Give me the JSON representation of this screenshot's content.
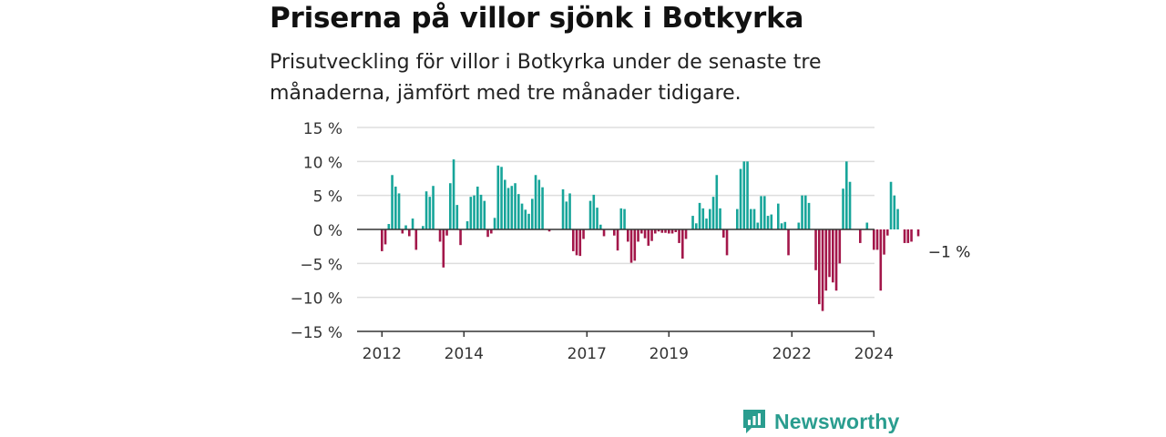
{
  "title": "Priserna på villor sjönk i Botkyrka",
  "subtitle": "Prisutveckling för villor i Botkyrka under de senaste tre månaderna, jämfört med tre månader tidigare.",
  "brand": {
    "name": "Newsworthy",
    "icon": "newsworthy-logo-icon"
  },
  "colors": {
    "positive": "#17a59a",
    "negative": "#a3174a",
    "grid": "#dddddd",
    "axis": "#333333"
  },
  "chart_data": {
    "type": "bar",
    "title": "Priserna på villor sjönk i Botkyrka",
    "xlabel": "",
    "ylabel": "",
    "ylim": [
      -15,
      15
    ],
    "y_ticks": [
      15,
      10,
      5,
      0,
      -5,
      -10,
      -15
    ],
    "y_tick_labels": [
      "15 %",
      "10 %",
      "5 %",
      "0 %",
      "−5 %",
      "−10 %",
      "−15 %"
    ],
    "x_ticks": [
      "2012",
      "2014",
      "2017",
      "2019",
      "2022",
      "2024"
    ],
    "grid": true,
    "last_value_label": "−1 %",
    "start_period": "2012-01",
    "values": [
      -3.2,
      -2.2,
      0.8,
      8,
      6.3,
      5.3,
      -0.6,
      0.6,
      -1,
      1.6,
      -3,
      0,
      0.5,
      5.6,
      4.8,
      6.4,
      0,
      -1.8,
      -5.6,
      -0.9,
      6.8,
      10.3,
      3.6,
      -2.3,
      0,
      1.2,
      4.8,
      5,
      6.3,
      5.1,
      4.2,
      -1.1,
      -0.6,
      1.7,
      9.4,
      9.2,
      7.3,
      6.1,
      6.4,
      6.8,
      5.2,
      3.8,
      2.9,
      2.3,
      4.5,
      8,
      7.3,
      6.2,
      0,
      -0.3,
      0,
      0,
      0,
      5.9,
      4.1,
      5.3,
      -3.2,
      -3.8,
      -3.9,
      -1.4,
      0,
      4.2,
      5.1,
      3.2,
      0.7,
      -1,
      0,
      0,
      -0.9,
      -3.1,
      3.1,
      3,
      -1.8,
      -4.9,
      -4.6,
      -1.8,
      -0.6,
      -1.3,
      -2.4,
      -1.7,
      -0.6,
      -0.3,
      -0.5,
      -0.5,
      -0.6,
      -0.6,
      -0.4,
      -2,
      -4.3,
      -1.4,
      0,
      2,
      0.9,
      3.9,
      3.1,
      1.6,
      3,
      4.8,
      8,
      3.1,
      -1.2,
      -3.8,
      0,
      0,
      3,
      8.9,
      10,
      10,
      3,
      3,
      1,
      4.9,
      4.9,
      2,
      2.2,
      0,
      3.8,
      0.9,
      1.1,
      -3.8,
      0,
      0,
      1,
      5,
      5,
      3.9,
      0,
      -6,
      -11,
      -12,
      -9,
      -7,
      -7.8,
      -9,
      -5,
      6,
      10,
      7,
      0,
      0,
      -2,
      0,
      1,
      0,
      -3,
      -3,
      -9,
      -3.7,
      -0.9,
      7,
      5,
      3,
      0,
      -2,
      -2,
      -1.8,
      0,
      -1
    ]
  }
}
